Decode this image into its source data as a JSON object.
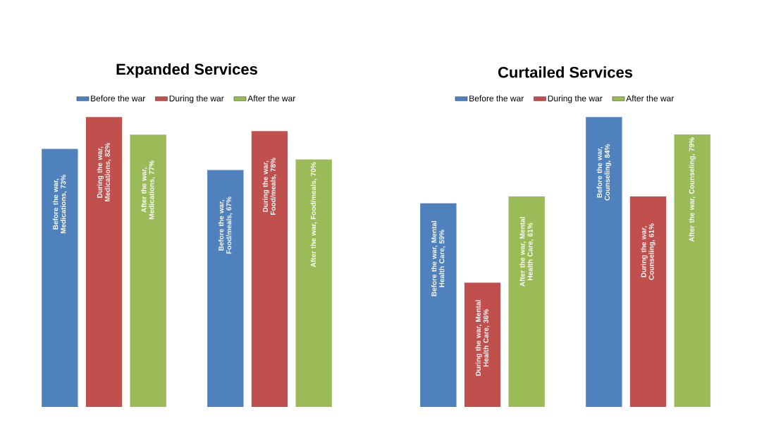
{
  "chart_data": [
    {
      "type": "bar",
      "title": "Expanded Services",
      "categories": [
        null,
        null
      ],
      "legend": "top",
      "series": [
        {
          "name": "Before the war",
          "color": "#4f81bd",
          "values": [
            73,
            67
          ],
          "value_labels": [
            "Before the war, Medications, 73%",
            "Before the war, Food/meals, 67%"
          ]
        },
        {
          "name": "During the war",
          "color": "#c0504d",
          "values": [
            82,
            78
          ],
          "value_labels": [
            "During the war, Medications, 82%",
            "During the war, Food/meals, 78%"
          ]
        },
        {
          "name": "After the war",
          "color": "#9bbb59",
          "values": [
            77,
            70
          ],
          "value_labels": [
            "After the war, Medications, 77%",
            "After the war, Food/meals, 70%"
          ]
        }
      ]
    },
    {
      "type": "bar",
      "title": "Curtailed Services",
      "categories": [
        null,
        null
      ],
      "legend": "top",
      "series": [
        {
          "name": "Before the war",
          "color": "#4f81bd",
          "values": [
            59,
            84
          ],
          "value_labels": [
            "Before the war, Mental Health Care, 59%",
            "Before the war, Counseling, 84%"
          ]
        },
        {
          "name": "During the war",
          "color": "#c0504d",
          "values": [
            36,
            61
          ],
          "value_labels": [
            "During the war, Mental Health Care, 36%",
            "During the war, Counseling, 61%"
          ]
        },
        {
          "name": "After the war",
          "color": "#9bbb59",
          "values": [
            61,
            79
          ],
          "value_labels": [
            "After the war, Mental Health Care, 61%",
            "After the war, Counseling, 79%"
          ]
        }
      ]
    }
  ]
}
